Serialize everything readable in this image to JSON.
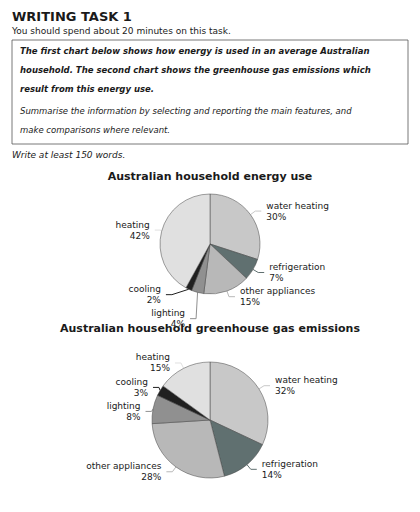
{
  "title": "WRITING TASK 1",
  "subtitle": "You should spend about 20 minutes on this task.",
  "annotations": [
    "The first chart below shows how energy is used in an average Australian",
    "household. The second chart shows the greenhouse gas emissions which",
    "result from this energy use.",
    "Summarise the information by selecting and reporting the main features, and",
    "make comparisons where relevant.",
    "Write at least 150 words."
  ],
  "chart_data": [
    {
      "type": "pie",
      "title": "Australian household energy use",
      "categories": [
        "water heating",
        "refrigeration",
        "other appliances",
        "lighting",
        "cooling",
        "heating"
      ],
      "values": [
        30,
        7,
        15,
        4,
        2,
        42
      ],
      "value_labels": [
        "30%",
        "7%",
        "15%",
        "4%",
        "2%",
        "42%"
      ],
      "colors": [
        "#c8c8c8",
        "#607070",
        "#b8b8b8",
        "#909090",
        "#202020",
        "#e0e0e0"
      ],
      "data_labels": true
    },
    {
      "type": "pie",
      "title": "Australian household greenhouse gas emissions",
      "categories": [
        "water heating",
        "refrigeration",
        "other appliances",
        "lighting",
        "cooling",
        "heating"
      ],
      "values": [
        32,
        14,
        28,
        8,
        3,
        15
      ],
      "value_labels": [
        "32%",
        "14%",
        "28%",
        "8%",
        "3%",
        "15%"
      ],
      "colors": [
        "#c8c8c8",
        "#607070",
        "#b8b8b8",
        "#909090",
        "#202020",
        "#e0e0e0"
      ],
      "data_labels": true
    }
  ]
}
